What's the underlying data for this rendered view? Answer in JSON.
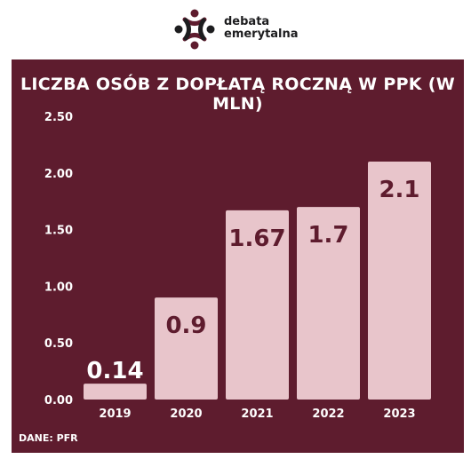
{
  "logo": {
    "line1": "debata",
    "line2": "emerytalna"
  },
  "chart_data": {
    "type": "bar",
    "title": "LICZBA OSÓB Z DOPŁATĄ ROCZNĄ W PPK (W MLN)",
    "categories": [
      "2019",
      "2020",
      "2021",
      "2022",
      "2023"
    ],
    "values": [
      0.14,
      0.9,
      1.67,
      1.7,
      2.1
    ],
    "data_labels": [
      "0.14",
      "0.9",
      "1.67",
      "1.7",
      "2.1"
    ],
    "yticks": [
      "0.00",
      "0.50",
      "1.00",
      "1.50",
      "2.00",
      "2.50"
    ],
    "ylim": [
      0,
      2.5
    ],
    "grid": false,
    "colors": {
      "background": "#5e1c2e",
      "bar": "#e8c5cb",
      "label_inside": "#5e1c2e",
      "label_outside": "#ffffff"
    }
  },
  "source": "DANE: PFR"
}
